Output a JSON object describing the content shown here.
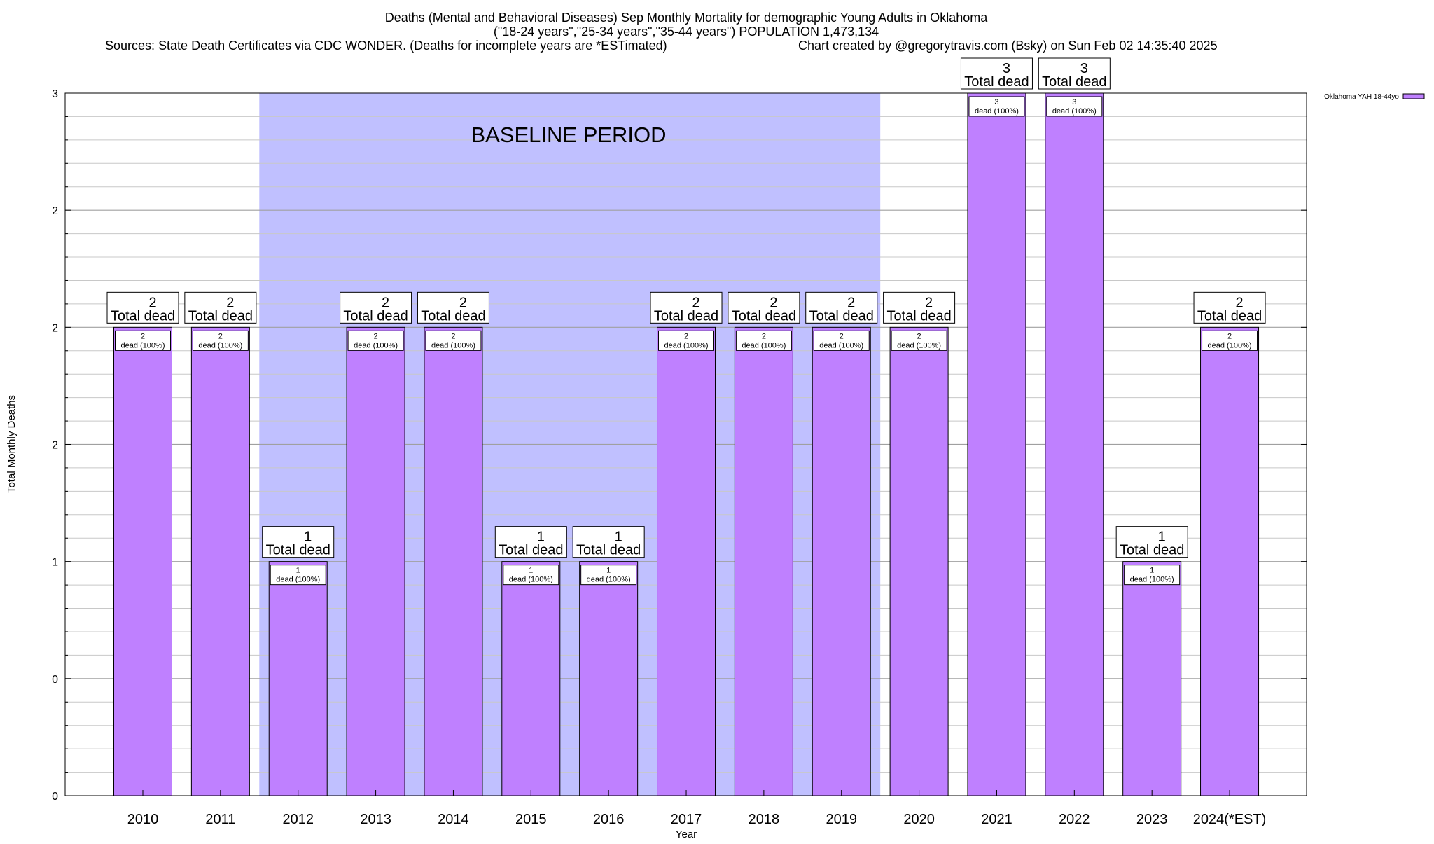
{
  "chart_data": {
    "type": "bar",
    "title_lines": [
      "Deaths (Mental and Behavioral Diseases) Sep Monthly Mortality for demographic Young Adults in Oklahoma",
      "(\"18-24 years\",\"25-34 years\",\"35-44 years\") POPULATION 1,473,134"
    ],
    "sources": "Sources: State Death Certificates via CDC WONDER. (Deaths for incomplete years are *ESTimated)",
    "credit": "Chart created by @gregorytravis.com (Bsky) on Sun Feb 02 14:35:40 2025",
    "xlabel": "Year",
    "ylabel": "Total Monthly Deaths",
    "ylim": [
      0,
      3
    ],
    "y_tick_labels": [
      "0",
      "0",
      "1",
      "2",
      "2",
      "2",
      "3"
    ],
    "categories": [
      "2010",
      "2011",
      "2012",
      "2013",
      "2014",
      "2015",
      "2016",
      "2017",
      "2018",
      "2019",
      "2020",
      "2021",
      "2022",
      "2023",
      "2024(*EST)"
    ],
    "series": [
      {
        "name": "Oklahoma YAH 18-44yo",
        "color": "#bf80ff",
        "values": [
          2,
          2,
          1,
          2,
          2,
          1,
          1,
          2,
          2,
          2,
          2,
          3,
          3,
          1,
          2
        ]
      }
    ],
    "total_label_suffix": "Total dead",
    "inner_label_suffix": "dead (100%)",
    "baseline": {
      "label": "BASELINE PERIOD",
      "start": "2012",
      "end": "2019",
      "color": "#c0c0ff"
    },
    "legend_position": "top-right",
    "grid": true
  }
}
